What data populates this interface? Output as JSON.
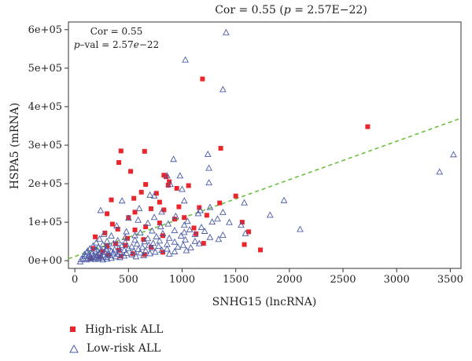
{
  "chart_data": {
    "type": "scatter",
    "title": "Cor = 0.55 (p = 2.57E−22)",
    "title_parts": {
      "pre": "Cor = 0.55 (",
      "p": "p",
      "post": " = 2.57E−22)"
    },
    "annotation": {
      "line1": "Cor = 0.55",
      "p": "p",
      "line2_rest": "–val = 2.57",
      "e": "e",
      "exp": "−22"
    },
    "xlabel": "SNHG15 (lncRNA)",
    "ylabel": "HSPA5 (mRNA)",
    "xlim": [
      -60,
      3600
    ],
    "ylim": [
      -20000,
      620000
    ],
    "xticks": [
      0,
      500,
      1000,
      1500,
      2000,
      2500,
      3000,
      3500
    ],
    "yticks": [
      0,
      100000,
      200000,
      300000,
      400000,
      500000,
      600000
    ],
    "ytick_labels": [
      "0e+00",
      "1e+05",
      "2e+05",
      "3e+05",
      "4e+05",
      "5e+05",
      "6e+05"
    ],
    "grid": false,
    "legend_placement": "bottom-left",
    "trendline": {
      "style": "dashed",
      "color": "#6cbf3d",
      "x": [
        -60,
        3600
      ],
      "y": [
        5000,
        370000
      ]
    },
    "series": [
      {
        "name": "High-risk ALL",
        "marker": "square",
        "color": "#e8262b",
        "points": [
          [
            1190,
            472000
          ],
          [
            2730,
            348000
          ],
          [
            1360,
            292000
          ],
          [
            430,
            285000
          ],
          [
            650,
            284000
          ],
          [
            410,
            255000
          ],
          [
            520,
            232000
          ],
          [
            830,
            222000
          ],
          [
            850,
            218000
          ],
          [
            880,
            205000
          ],
          [
            660,
            198000
          ],
          [
            870,
            196000
          ],
          [
            1060,
            195000
          ],
          [
            950,
            188000
          ],
          [
            620,
            178000
          ],
          [
            760,
            175000
          ],
          [
            1500,
            168000
          ],
          [
            550,
            162000
          ],
          [
            340,
            158000
          ],
          [
            790,
            152000
          ],
          [
            1350,
            150000
          ],
          [
            970,
            140000
          ],
          [
            1160,
            138000
          ],
          [
            710,
            135000
          ],
          [
            830,
            132000
          ],
          [
            560,
            126000
          ],
          [
            300,
            122000
          ],
          [
            1230,
            118000
          ],
          [
            1020,
            112000
          ],
          [
            500,
            112000
          ],
          [
            930,
            108000
          ],
          [
            1560,
            100000
          ],
          [
            790,
            98000
          ],
          [
            350,
            95000
          ],
          [
            660,
            88000
          ],
          [
            1110,
            85000
          ],
          [
            400,
            82000
          ],
          [
            560,
            80000
          ],
          [
            1620,
            75000
          ],
          [
            280,
            72000
          ],
          [
            1130,
            70000
          ],
          [
            820,
            65000
          ],
          [
            190,
            62000
          ],
          [
            490,
            58000
          ],
          [
            640,
            55000
          ],
          [
            1200,
            45000
          ],
          [
            380,
            44000
          ],
          [
            1580,
            42000
          ],
          [
            470,
            40000
          ],
          [
            300,
            38000
          ],
          [
            710,
            35000
          ],
          [
            170,
            32000
          ],
          [
            1730,
            28000
          ],
          [
            410,
            27000
          ],
          [
            260,
            24000
          ],
          [
            820,
            22000
          ],
          [
            540,
            18000
          ],
          [
            650,
            16000
          ],
          [
            310,
            15000
          ],
          [
            430,
            12000
          ],
          [
            230,
            10000
          ],
          [
            150,
            6000
          ]
        ]
      },
      {
        "name": "Low-risk ALL",
        "marker": "triangle",
        "color": "#4a5aa8",
        "points": [
          [
            1410,
            592000
          ],
          [
            1030,
            521000
          ],
          [
            1380,
            444000
          ],
          [
            3530,
            275000
          ],
          [
            3400,
            230000
          ],
          [
            1240,
            276000
          ],
          [
            920,
            263000
          ],
          [
            1250,
            240000
          ],
          [
            860,
            220000
          ],
          [
            980,
            220000
          ],
          [
            1250,
            202000
          ],
          [
            890,
            198000
          ],
          [
            1000,
            185000
          ],
          [
            1950,
            156000
          ],
          [
            1580,
            150000
          ],
          [
            700,
            170000
          ],
          [
            740,
            168000
          ],
          [
            440,
            155000
          ],
          [
            1020,
            155000
          ],
          [
            1260,
            138000
          ],
          [
            600,
            135000
          ],
          [
            1170,
            130000
          ],
          [
            240,
            130000
          ],
          [
            810,
            126000
          ],
          [
            1380,
            125000
          ],
          [
            1150,
            122000
          ],
          [
            1820,
            118000
          ],
          [
            940,
            115000
          ],
          [
            740,
            112000
          ],
          [
            500,
            110000
          ],
          [
            1330,
            108000
          ],
          [
            590,
            105000
          ],
          [
            1050,
            102000
          ],
          [
            1280,
            100000
          ],
          [
            1440,
            99000
          ],
          [
            680,
            97000
          ],
          [
            870,
            95000
          ],
          [
            1020,
            92000
          ],
          [
            1550,
            92000
          ],
          [
            390,
            90000
          ],
          [
            800,
            88000
          ],
          [
            1180,
            86000
          ],
          [
            2100,
            81000
          ],
          [
            1070,
            80000
          ],
          [
            930,
            78000
          ],
          [
            720,
            77000
          ],
          [
            1210,
            76000
          ],
          [
            1590,
            70000
          ],
          [
            480,
            75000
          ],
          [
            1020,
            73000
          ],
          [
            610,
            72000
          ],
          [
            820,
            70000
          ],
          [
            270,
            68000
          ],
          [
            1120,
            68000
          ],
          [
            1380,
            66000
          ],
          [
            990,
            64000
          ],
          [
            560,
            65000
          ],
          [
            340,
            64000
          ],
          [
            760,
            62000
          ],
          [
            1260,
            60000
          ],
          [
            470,
            60000
          ],
          [
            880,
            58000
          ],
          [
            680,
            57000
          ],
          [
            1340,
            55000
          ],
          [
            230,
            56000
          ],
          [
            1030,
            54000
          ],
          [
            560,
            53000
          ],
          [
            400,
            52000
          ],
          [
            790,
            51000
          ],
          [
            300,
            50000
          ],
          [
            1120,
            50000
          ],
          [
            650,
            49000
          ],
          [
            930,
            48000
          ],
          [
            470,
            47000
          ],
          [
            200,
            46000
          ],
          [
            730,
            45000
          ],
          [
            1160,
            44000
          ],
          [
            360,
            44000
          ],
          [
            580,
            43000
          ],
          [
            860,
            42000
          ],
          [
            260,
            41000
          ],
          [
            1010,
            40000
          ],
          [
            690,
            40000
          ],
          [
            440,
            39000
          ],
          [
            170,
            38000
          ],
          [
            780,
            37000
          ],
          [
            530,
            36000
          ],
          [
            310,
            36000
          ],
          [
            960,
            35000
          ],
          [
            630,
            34000
          ],
          [
            220,
            34000
          ],
          [
            410,
            33000
          ],
          [
            1080,
            33000
          ],
          [
            720,
            32000
          ],
          [
            140,
            31000
          ],
          [
            500,
            31000
          ],
          [
            860,
            30000
          ],
          [
            290,
            30000
          ],
          [
            590,
            29000
          ],
          [
            370,
            28000
          ],
          [
            200,
            28000
          ],
          [
            810,
            27000
          ],
          [
            460,
            27000
          ],
          [
            1040,
            26000
          ],
          [
            250,
            26000
          ],
          [
            660,
            25000
          ],
          [
            120,
            25000
          ],
          [
            340,
            24000
          ],
          [
            550,
            24000
          ],
          [
            930,
            23000
          ],
          [
            190,
            23000
          ],
          [
            420,
            22000
          ],
          [
            750,
            22000
          ],
          [
            280,
            21000
          ],
          [
            110,
            21000
          ],
          [
            610,
            20000
          ],
          [
            360,
            20000
          ],
          [
            480,
            19000
          ],
          [
            230,
            19000
          ],
          [
            160,
            18000
          ],
          [
            700,
            18000
          ],
          [
            310,
            17000
          ],
          [
            880,
            17000
          ],
          [
            90,
            16000
          ],
          [
            400,
            16000
          ],
          [
            530,
            15000
          ],
          [
            210,
            15000
          ],
          [
            270,
            14000
          ],
          [
            130,
            14000
          ],
          [
            640,
            13000
          ],
          [
            330,
            13000
          ],
          [
            180,
            12000
          ],
          [
            460,
            12000
          ],
          [
            240,
            11000
          ],
          [
            100,
            11000
          ],
          [
            380,
            10000
          ],
          [
            570,
            10000
          ],
          [
            150,
            9000
          ],
          [
            290,
            9000
          ],
          [
            200,
            8000
          ],
          [
            420,
            8000
          ],
          [
            120,
            7000
          ],
          [
            250,
            7000
          ],
          [
            340,
            6000
          ],
          [
            170,
            6000
          ],
          [
            80,
            5000
          ],
          [
            220,
            5000
          ],
          [
            300,
            4000
          ],
          [
            140,
            4000
          ],
          [
            60,
            3000
          ],
          [
            190,
            3000
          ],
          [
            260,
            2000
          ],
          [
            110,
            2000
          ],
          [
            50,
            -3000
          ]
        ]
      }
    ]
  }
}
